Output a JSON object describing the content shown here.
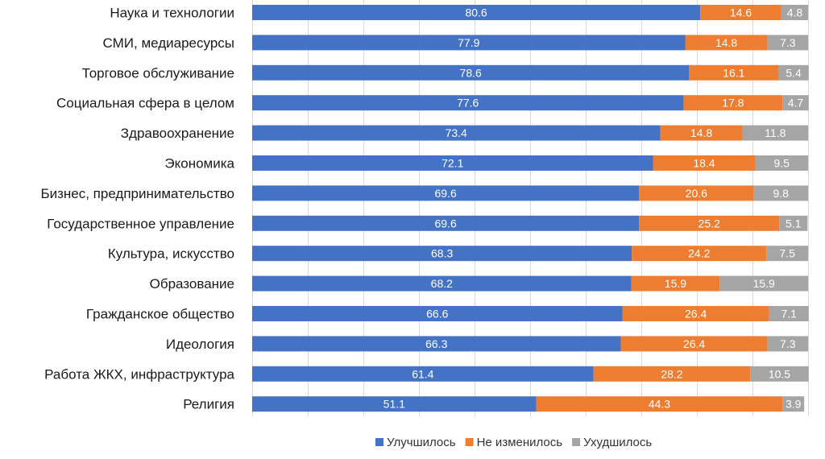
{
  "chart_data": {
    "type": "bar",
    "orientation": "horizontal",
    "stacked": true,
    "categories": [
      "Наука и технологии",
      "СМИ, медиаресурсы",
      "Торговое обслуживание",
      "Социальная сфера в целом",
      "Здравоохранение",
      "Экономика",
      "Бизнес, предпринимательство",
      "Государственное управление",
      "Культура, искусство",
      "Образование",
      "Гражданское общество",
      "Идеология",
      "Работа ЖКХ, инфраструктура",
      "Религия"
    ],
    "series": [
      {
        "name": "Улучшилось",
        "color": "#4472C4",
        "values": [
          80.6,
          77.9,
          78.6,
          77.6,
          73.4,
          72.1,
          69.6,
          69.6,
          68.3,
          68.2,
          66.6,
          66.3,
          61.4,
          51.1
        ]
      },
      {
        "name": "Не изменилось",
        "color": "#ED7D31",
        "values": [
          14.6,
          14.8,
          16.1,
          17.8,
          14.8,
          18.4,
          20.6,
          25.2,
          24.2,
          15.9,
          26.4,
          26.4,
          28.2,
          44.3
        ]
      },
      {
        "name": "Ухудшилось",
        "color": "#A5A5A5",
        "values": [
          4.8,
          7.3,
          5.4,
          4.7,
          11.8,
          9.5,
          9.8,
          5.1,
          7.5,
          15.9,
          7.1,
          7.3,
          10.5,
          3.9
        ]
      }
    ],
    "xlim": [
      0,
      100
    ],
    "grid": true,
    "legend": "bottom"
  }
}
